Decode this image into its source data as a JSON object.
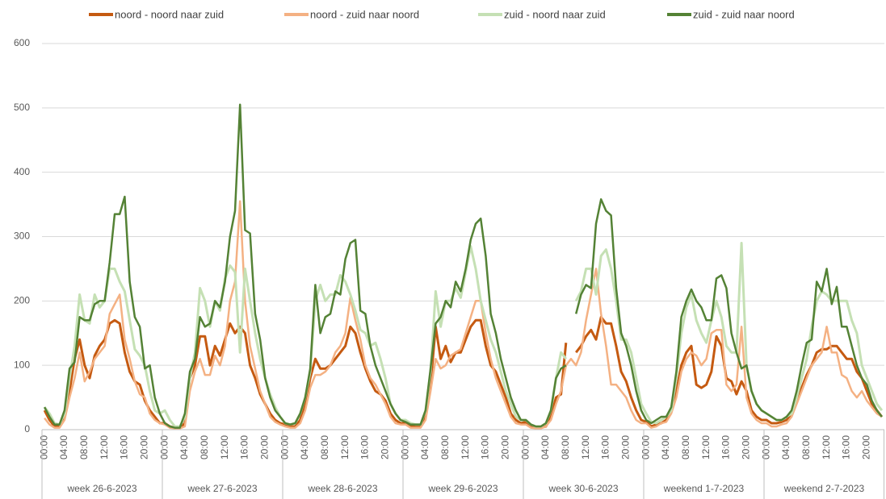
{
  "chart_data": {
    "type": "line",
    "categories": [
      "00:00",
      null,
      null,
      null,
      "04:00",
      null,
      null,
      null,
      "08:00",
      null,
      null,
      null,
      "12:00",
      null,
      null,
      null,
      "16:00",
      null,
      null,
      null,
      "20:00",
      null,
      null,
      null,
      "00:00",
      null,
      null,
      null,
      "04:00",
      null,
      null,
      null,
      "08:00",
      null,
      null,
      null,
      "12:00",
      null,
      null,
      null,
      "16:00",
      null,
      null,
      null,
      "20:00",
      null,
      null,
      null,
      "00:00",
      null,
      null,
      null,
      "04:00",
      null,
      null,
      null,
      "08:00",
      null,
      null,
      null,
      "12:00",
      null,
      null,
      null,
      "16:00",
      null,
      null,
      null,
      "20:00",
      null,
      null,
      null,
      "00:00",
      null,
      null,
      null,
      "04:00",
      null,
      null,
      null,
      "08:00",
      null,
      null,
      null,
      "12:00",
      null,
      null,
      null,
      "16:00",
      null,
      null,
      null,
      "20:00",
      null,
      null,
      null,
      "00:00",
      null,
      null,
      null,
      "04:00",
      null,
      null,
      null,
      "08:00",
      null,
      null,
      null,
      "12:00",
      null,
      null,
      null,
      "16:00",
      null,
      null,
      null,
      "20:00",
      null,
      null,
      null,
      "00:00",
      null,
      null,
      null,
      "04:00",
      null,
      null,
      null,
      "08:00",
      null,
      null,
      null,
      "12:00",
      null,
      null,
      null,
      "16:00",
      null,
      null,
      null,
      "20:00",
      null,
      null,
      null,
      "00:00",
      null,
      null,
      null,
      "04:00",
      null,
      null,
      null,
      "08:00",
      null,
      null,
      null,
      "12:00",
      null,
      null,
      null,
      "16:00",
      null,
      null,
      null,
      "20:00",
      null,
      null,
      null
    ],
    "groups": [
      "week 26-6-2023",
      "week 27-6-2023",
      "week 28-6-2023",
      "week 29-6-2023",
      "week 30-6-2023",
      "weekend 1-7-2023",
      "weekend 2-7-2023"
    ],
    "series": [
      {
        "name": "noord - noord naar zuid",
        "color": "#c55a11",
        "values": [
          30,
          15,
          5,
          5,
          20,
          60,
          110,
          140,
          100,
          80,
          115,
          130,
          140,
          165,
          170,
          165,
          120,
          90,
          75,
          70,
          45,
          30,
          20,
          10,
          10,
          5,
          3,
          3,
          10,
          80,
          100,
          145,
          145,
          100,
          130,
          115,
          140,
          165,
          150,
          160,
          150,
          100,
          80,
          55,
          40,
          25,
          15,
          10,
          8,
          5,
          5,
          15,
          40,
          80,
          110,
          95,
          95,
          100,
          110,
          120,
          130,
          160,
          150,
          120,
          95,
          75,
          60,
          55,
          45,
          25,
          15,
          10,
          10,
          5,
          5,
          5,
          20,
          70,
          160,
          110,
          130,
          105,
          120,
          120,
          140,
          160,
          170,
          170,
          130,
          100,
          90,
          70,
          50,
          25,
          15,
          10,
          12,
          5,
          3,
          3,
          5,
          20,
          50,
          55,
          135,
          null,
          120,
          130,
          145,
          155,
          140,
          175,
          165,
          165,
          130,
          90,
          75,
          50,
          30,
          15,
          12,
          5,
          8,
          10,
          15,
          30,
          60,
          100,
          120,
          130,
          70,
          65,
          70,
          90,
          145,
          130,
          80,
          75,
          55,
          75,
          60,
          30,
          20,
          15,
          15,
          10,
          10,
          12,
          15,
          25,
          45,
          65,
          85,
          100,
          120,
          125,
          125,
          130,
          130,
          120,
          110,
          110,
          90,
          80,
          60,
          40,
          30,
          20
        ]
      },
      {
        "name": "noord - zuid naar noord",
        "color": "#f4b183",
        "values": [
          18,
          8,
          3,
          3,
          15,
          50,
          80,
          120,
          75,
          90,
          110,
          120,
          130,
          180,
          195,
          210,
          140,
          110,
          75,
          55,
          50,
          25,
          15,
          10,
          8,
          3,
          2,
          2,
          5,
          60,
          90,
          110,
          85,
          85,
          115,
          100,
          130,
          200,
          230,
          355,
          200,
          130,
          95,
          60,
          40,
          20,
          12,
          8,
          5,
          3,
          3,
          10,
          30,
          65,
          85,
          85,
          90,
          100,
          120,
          130,
          150,
          205,
          170,
          140,
          100,
          80,
          70,
          55,
          40,
          20,
          10,
          8,
          8,
          3,
          3,
          3,
          15,
          60,
          110,
          95,
          100,
          115,
          120,
          125,
          150,
          175,
          200,
          200,
          150,
          110,
          80,
          60,
          40,
          20,
          10,
          8,
          8,
          3,
          2,
          2,
          5,
          15,
          40,
          60,
          100,
          110,
          100,
          120,
          170,
          210,
          250,
          180,
          130,
          70,
          70,
          60,
          50,
          30,
          15,
          10,
          10,
          3,
          5,
          10,
          12,
          25,
          50,
          90,
          110,
          120,
          115,
          100,
          110,
          150,
          155,
          155,
          70,
          60,
          70,
          160,
          50,
          25,
          15,
          10,
          10,
          5,
          5,
          8,
          10,
          20,
          40,
          60,
          80,
          100,
          110,
          120,
          160,
          120,
          120,
          85,
          80,
          60,
          50,
          60,
          45,
          35,
          25,
          20
        ]
      },
      {
        "name": "zuid - noord naar zuid",
        "color": "#c5e0b4",
        "values": [
          35,
          25,
          10,
          8,
          25,
          80,
          130,
          210,
          170,
          165,
          210,
          190,
          200,
          250,
          250,
          230,
          215,
          170,
          125,
          115,
          100,
          60,
          30,
          25,
          30,
          15,
          5,
          5,
          20,
          80,
          120,
          220,
          200,
          160,
          200,
          185,
          235,
          255,
          245,
          120,
          250,
          200,
          150,
          110,
          80,
          55,
          35,
          20,
          10,
          8,
          10,
          25,
          50,
          90,
          200,
          225,
          200,
          210,
          210,
          240,
          230,
          210,
          185,
          155,
          150,
          130,
          135,
          110,
          80,
          40,
          25,
          15,
          15,
          10,
          8,
          8,
          30,
          90,
          215,
          160,
          200,
          200,
          220,
          205,
          245,
          285,
          250,
          200,
          170,
          140,
          120,
          90,
          60,
          40,
          20,
          15,
          15,
          8,
          5,
          5,
          10,
          30,
          80,
          120,
          110,
          null,
          200,
          215,
          250,
          250,
          210,
          270,
          280,
          250,
          200,
          140,
          140,
          120,
          80,
          40,
          25,
          12,
          10,
          15,
          20,
          30,
          80,
          150,
          190,
          210,
          170,
          150,
          135,
          170,
          200,
          175,
          130,
          120,
          120,
          290,
          100,
          60,
          40,
          30,
          25,
          20,
          15,
          15,
          20,
          25,
          50,
          80,
          110,
          160,
          200,
          215,
          210,
          200,
          200,
          200,
          200,
          170,
          150,
          100,
          80,
          60,
          40,
          30
        ]
      },
      {
        "name": "zuid - zuid naar noord",
        "color": "#548235",
        "values": [
          35,
          20,
          8,
          8,
          30,
          95,
          105,
          175,
          170,
          170,
          195,
          200,
          200,
          260,
          335,
          335,
          362,
          230,
          175,
          160,
          95,
          100,
          50,
          25,
          10,
          5,
          3,
          3,
          25,
          90,
          110,
          175,
          160,
          165,
          200,
          190,
          230,
          300,
          340,
          505,
          310,
          305,
          180,
          140,
          80,
          50,
          30,
          20,
          10,
          8,
          10,
          25,
          50,
          95,
          225,
          150,
          175,
          180,
          215,
          210,
          265,
          290,
          295,
          185,
          180,
          130,
          100,
          80,
          60,
          40,
          25,
          15,
          12,
          8,
          8,
          8,
          30,
          95,
          165,
          175,
          200,
          190,
          230,
          215,
          250,
          295,
          320,
          328,
          270,
          180,
          150,
          110,
          80,
          50,
          30,
          15,
          15,
          8,
          5,
          5,
          10,
          30,
          80,
          95,
          100,
          null,
          180,
          210,
          225,
          220,
          320,
          358,
          340,
          333,
          220,
          150,
          130,
          100,
          60,
          30,
          15,
          10,
          15,
          20,
          20,
          35,
          90,
          175,
          200,
          218,
          200,
          190,
          170,
          170,
          235,
          240,
          220,
          150,
          120,
          95,
          100,
          60,
          40,
          30,
          25,
          20,
          15,
          15,
          20,
          30,
          60,
          100,
          135,
          140,
          230,
          215,
          250,
          195,
          222,
          160,
          160,
          130,
          100,
          80,
          70,
          45,
          30,
          20
        ]
      }
    ],
    "ylim": [
      0,
      600
    ],
    "yticks": [
      0,
      100,
      200,
      300,
      400,
      500,
      600
    ],
    "grid": true,
    "legend": "top"
  }
}
